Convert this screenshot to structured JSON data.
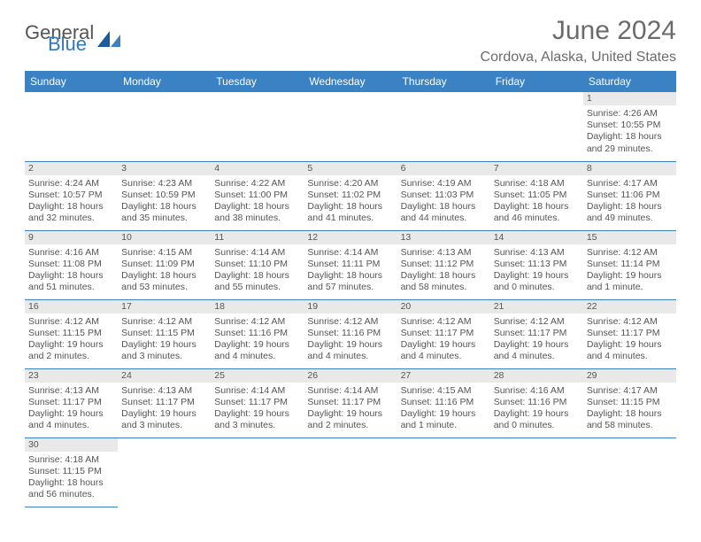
{
  "logo": {
    "text1": "General",
    "text2": "Blue",
    "accent_color": "#2f78bd"
  },
  "title": "June 2024",
  "location": "Cordova, Alaska, United States",
  "header_bg": "#3a82c4",
  "daynum_bg": "#e9e9e9",
  "text_color": "#555555",
  "day_headers": [
    "Sunday",
    "Monday",
    "Tuesday",
    "Wednesday",
    "Thursday",
    "Friday",
    "Saturday"
  ],
  "weeks": [
    [
      null,
      null,
      null,
      null,
      null,
      null,
      {
        "n": "1",
        "sr": "Sunrise: 4:26 AM",
        "ss": "Sunset: 10:55 PM",
        "dl": "Daylight: 18 hours and 29 minutes."
      }
    ],
    [
      {
        "n": "2",
        "sr": "Sunrise: 4:24 AM",
        "ss": "Sunset: 10:57 PM",
        "dl": "Daylight: 18 hours and 32 minutes."
      },
      {
        "n": "3",
        "sr": "Sunrise: 4:23 AM",
        "ss": "Sunset: 10:59 PM",
        "dl": "Daylight: 18 hours and 35 minutes."
      },
      {
        "n": "4",
        "sr": "Sunrise: 4:22 AM",
        "ss": "Sunset: 11:00 PM",
        "dl": "Daylight: 18 hours and 38 minutes."
      },
      {
        "n": "5",
        "sr": "Sunrise: 4:20 AM",
        "ss": "Sunset: 11:02 PM",
        "dl": "Daylight: 18 hours and 41 minutes."
      },
      {
        "n": "6",
        "sr": "Sunrise: 4:19 AM",
        "ss": "Sunset: 11:03 PM",
        "dl": "Daylight: 18 hours and 44 minutes."
      },
      {
        "n": "7",
        "sr": "Sunrise: 4:18 AM",
        "ss": "Sunset: 11:05 PM",
        "dl": "Daylight: 18 hours and 46 minutes."
      },
      {
        "n": "8",
        "sr": "Sunrise: 4:17 AM",
        "ss": "Sunset: 11:06 PM",
        "dl": "Daylight: 18 hours and 49 minutes."
      }
    ],
    [
      {
        "n": "9",
        "sr": "Sunrise: 4:16 AM",
        "ss": "Sunset: 11:08 PM",
        "dl": "Daylight: 18 hours and 51 minutes."
      },
      {
        "n": "10",
        "sr": "Sunrise: 4:15 AM",
        "ss": "Sunset: 11:09 PM",
        "dl": "Daylight: 18 hours and 53 minutes."
      },
      {
        "n": "11",
        "sr": "Sunrise: 4:14 AM",
        "ss": "Sunset: 11:10 PM",
        "dl": "Daylight: 18 hours and 55 minutes."
      },
      {
        "n": "12",
        "sr": "Sunrise: 4:14 AM",
        "ss": "Sunset: 11:11 PM",
        "dl": "Daylight: 18 hours and 57 minutes."
      },
      {
        "n": "13",
        "sr": "Sunrise: 4:13 AM",
        "ss": "Sunset: 11:12 PM",
        "dl": "Daylight: 18 hours and 58 minutes."
      },
      {
        "n": "14",
        "sr": "Sunrise: 4:13 AM",
        "ss": "Sunset: 11:13 PM",
        "dl": "Daylight: 19 hours and 0 minutes."
      },
      {
        "n": "15",
        "sr": "Sunrise: 4:12 AM",
        "ss": "Sunset: 11:14 PM",
        "dl": "Daylight: 19 hours and 1 minute."
      }
    ],
    [
      {
        "n": "16",
        "sr": "Sunrise: 4:12 AM",
        "ss": "Sunset: 11:15 PM",
        "dl": "Daylight: 19 hours and 2 minutes."
      },
      {
        "n": "17",
        "sr": "Sunrise: 4:12 AM",
        "ss": "Sunset: 11:15 PM",
        "dl": "Daylight: 19 hours and 3 minutes."
      },
      {
        "n": "18",
        "sr": "Sunrise: 4:12 AM",
        "ss": "Sunset: 11:16 PM",
        "dl": "Daylight: 19 hours and 4 minutes."
      },
      {
        "n": "19",
        "sr": "Sunrise: 4:12 AM",
        "ss": "Sunset: 11:16 PM",
        "dl": "Daylight: 19 hours and 4 minutes."
      },
      {
        "n": "20",
        "sr": "Sunrise: 4:12 AM",
        "ss": "Sunset: 11:17 PM",
        "dl": "Daylight: 19 hours and 4 minutes."
      },
      {
        "n": "21",
        "sr": "Sunrise: 4:12 AM",
        "ss": "Sunset: 11:17 PM",
        "dl": "Daylight: 19 hours and 4 minutes."
      },
      {
        "n": "22",
        "sr": "Sunrise: 4:12 AM",
        "ss": "Sunset: 11:17 PM",
        "dl": "Daylight: 19 hours and 4 minutes."
      }
    ],
    [
      {
        "n": "23",
        "sr": "Sunrise: 4:13 AM",
        "ss": "Sunset: 11:17 PM",
        "dl": "Daylight: 19 hours and 4 minutes."
      },
      {
        "n": "24",
        "sr": "Sunrise: 4:13 AM",
        "ss": "Sunset: 11:17 PM",
        "dl": "Daylight: 19 hours and 3 minutes."
      },
      {
        "n": "25",
        "sr": "Sunrise: 4:14 AM",
        "ss": "Sunset: 11:17 PM",
        "dl": "Daylight: 19 hours and 3 minutes."
      },
      {
        "n": "26",
        "sr": "Sunrise: 4:14 AM",
        "ss": "Sunset: 11:17 PM",
        "dl": "Daylight: 19 hours and 2 minutes."
      },
      {
        "n": "27",
        "sr": "Sunrise: 4:15 AM",
        "ss": "Sunset: 11:16 PM",
        "dl": "Daylight: 19 hours and 1 minute."
      },
      {
        "n": "28",
        "sr": "Sunrise: 4:16 AM",
        "ss": "Sunset: 11:16 PM",
        "dl": "Daylight: 19 hours and 0 minutes."
      },
      {
        "n": "29",
        "sr": "Sunrise: 4:17 AM",
        "ss": "Sunset: 11:15 PM",
        "dl": "Daylight: 18 hours and 58 minutes."
      }
    ],
    [
      {
        "n": "30",
        "sr": "Sunrise: 4:18 AM",
        "ss": "Sunset: 11:15 PM",
        "dl": "Daylight: 18 hours and 56 minutes."
      },
      null,
      null,
      null,
      null,
      null,
      null
    ]
  ]
}
